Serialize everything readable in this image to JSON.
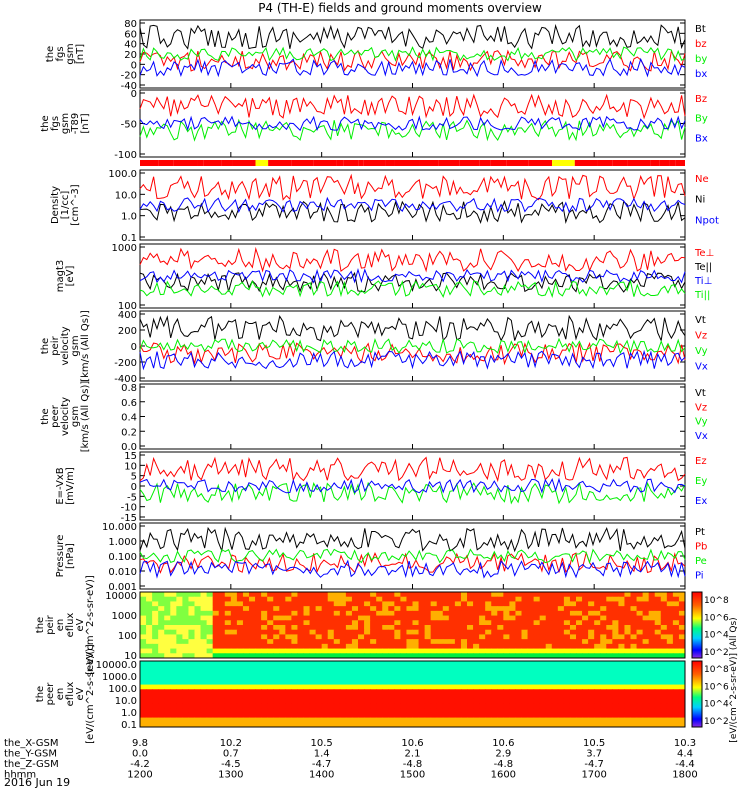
{
  "title": "P4 (TH-E) fields and ground moments overview",
  "date_label": "2016 Jun 19",
  "colorbar_label": "[eV/(cm^2-s-sr-eV)] (All Qs)",
  "colors": {
    "black": "#000000",
    "red": "#ff0000",
    "green": "#00ee00",
    "blue": "#0000ff",
    "yellow": "#ffff00"
  },
  "chart_data": [
    {
      "type": "line",
      "ylabel": [
        "the",
        "fgs",
        "gsm",
        "[nT]"
      ],
      "yticks": [
        "80",
        "60",
        "40",
        "20",
        "0",
        "-20",
        "-40"
      ],
      "ylim": [
        -40,
        80
      ],
      "grid": false,
      "legend_position": "right",
      "series": [
        {
          "name": "Bt",
          "color": "#000000"
        },
        {
          "name": "bz",
          "color": "#ff0000"
        },
        {
          "name": "by",
          "color": "#00ee00"
        },
        {
          "name": "bx",
          "color": "#0000ff"
        }
      ]
    },
    {
      "type": "line",
      "ylabel": [
        "the",
        "fgs",
        "gsm",
        "-T89",
        "[nT]"
      ],
      "yticks": [
        "0",
        "-50",
        "-100"
      ],
      "ylim": [
        -130,
        50
      ],
      "grid": false,
      "legend_position": "right",
      "series": [
        {
          "name": "Bz",
          "color": "#ff0000"
        },
        {
          "name": "By",
          "color": "#00ee00"
        },
        {
          "name": "Bx",
          "color": "#0000ff"
        }
      ]
    },
    {
      "type": "bar",
      "description_role": "mode bar",
      "colors": [
        "#ff0000",
        "#ffff00"
      ]
    },
    {
      "type": "line",
      "ylabel": [
        "Density",
        "[1/cc]",
        "[cm^-3]"
      ],
      "yticks": [
        "100.0",
        "10.0",
        "1.0",
        "0.1"
      ],
      "ylim": [
        0.1,
        100
      ],
      "yscale": "log",
      "grid": false,
      "legend_position": "right",
      "series": [
        {
          "name": "Ne",
          "color": "#ff0000"
        },
        {
          "name": "Ni",
          "color": "#000000"
        },
        {
          "name": "Npot",
          "color": "#0000ff"
        }
      ]
    },
    {
      "type": "line",
      "ylabel": [
        "magt3",
        "[eV]"
      ],
      "yticks": [
        "1000",
        "100"
      ],
      "ylim": [
        30,
        2000
      ],
      "yscale": "log",
      "grid": false,
      "legend_position": "right",
      "series": [
        {
          "name": "Te⊥",
          "color": "#ff0000"
        },
        {
          "name": "Te||",
          "color": "#000000"
        },
        {
          "name": "Ti⊥",
          "color": "#0000ff"
        },
        {
          "name": "Ti||",
          "color": "#00ee00"
        }
      ]
    },
    {
      "type": "line",
      "ylabel": [
        "the",
        "peir",
        "velocity",
        "gsm",
        "[km/s (All Qs)]"
      ],
      "yticks": [
        "400",
        "200",
        "0",
        "-200",
        "-400"
      ],
      "ylim": [
        -400,
        400
      ],
      "grid": false,
      "legend_position": "right",
      "series": [
        {
          "name": "Vt",
          "color": "#000000"
        },
        {
          "name": "Vz",
          "color": "#ff0000"
        },
        {
          "name": "Vy",
          "color": "#00ee00"
        },
        {
          "name": "Vx",
          "color": "#0000ff"
        }
      ]
    },
    {
      "type": "line",
      "ylabel": [
        "the",
        "peer",
        "velocity",
        "gsm",
        "[km/s (All Qs)]"
      ],
      "yticks": [
        "0.8",
        "0.6",
        "0.4",
        "0.2",
        "0.0"
      ],
      "ylim": [
        0,
        1
      ],
      "grid": false,
      "legend_position": "right",
      "series": [
        {
          "name": "Vt",
          "color": "#000000"
        },
        {
          "name": "Vz",
          "color": "#ff0000"
        },
        {
          "name": "Vy",
          "color": "#00ee00"
        },
        {
          "name": "Vx",
          "color": "#0000ff"
        }
      ]
    },
    {
      "type": "line",
      "ylabel": [
        "E=-VxB",
        "[mV/m]"
      ],
      "yticks": [
        "15",
        "10",
        "5",
        "0",
        "-5",
        "-10",
        "-15"
      ],
      "ylim": [
        -15,
        15
      ],
      "grid": false,
      "legend_position": "right",
      "series": [
        {
          "name": "Ez",
          "color": "#ff0000"
        },
        {
          "name": "Ey",
          "color": "#00ee00"
        },
        {
          "name": "Ex",
          "color": "#0000ff"
        }
      ]
    },
    {
      "type": "line",
      "ylabel": [
        "Pressure",
        "[nPa]"
      ],
      "yticks": [
        "10.000",
        "1.000",
        "0.100",
        "0.010",
        "0.001"
      ],
      "ylim": [
        0.001,
        10
      ],
      "yscale": "log",
      "grid": false,
      "legend_position": "right",
      "series": [
        {
          "name": "Pt",
          "color": "#000000"
        },
        {
          "name": "Pb",
          "color": "#ff0000"
        },
        {
          "name": "Pe",
          "color": "#00ee00"
        },
        {
          "name": "Pi",
          "color": "#0000ff"
        }
      ]
    },
    {
      "type": "heatmap",
      "ylabel": [
        "the",
        "peir",
        "en",
        "eflux",
        "eV",
        "[eV/(cm^2-s-sr-eV)]"
      ],
      "yticks": [
        "10000",
        "1000",
        "100",
        "10"
      ],
      "ylim": [
        5,
        20000
      ],
      "yscale": "log",
      "colorbar_ticks": [
        "10^8",
        "10^6",
        "10^4",
        "10^2"
      ]
    },
    {
      "type": "heatmap",
      "ylabel": [
        "the",
        "peer",
        "en",
        "eflux",
        "eV",
        "[eV/(cm^2-s-sr-eV)]"
      ],
      "yticks": [
        "10000.0",
        "1000.0",
        "100.0",
        "10.0",
        "1.0",
        "0.1"
      ],
      "ylim": [
        0.1,
        20000
      ],
      "yscale": "log",
      "colorbar_ticks": [
        "10^8",
        "10^6",
        "10^4",
        "10^2"
      ]
    }
  ],
  "x_axis": {
    "rows": [
      {
        "label": "the_X-GSM",
        "values": [
          "9.8",
          "10.2",
          "10.5",
          "10.6",
          "10.6",
          "10.5",
          "10.3"
        ]
      },
      {
        "label": "the_Y-GSM",
        "values": [
          "0.0",
          "0.7",
          "1.4",
          "2.1",
          "2.9",
          "3.7",
          "4.4"
        ]
      },
      {
        "label": "the_Z-GSM",
        "values": [
          "-4.2",
          "-4.5",
          "-4.7",
          "-4.8",
          "-4.8",
          "-4.7",
          "-4.4"
        ]
      },
      {
        "label": "hhmm",
        "values": [
          "1200",
          "1300",
          "1400",
          "1500",
          "1600",
          "1700",
          "1800"
        ]
      }
    ]
  }
}
